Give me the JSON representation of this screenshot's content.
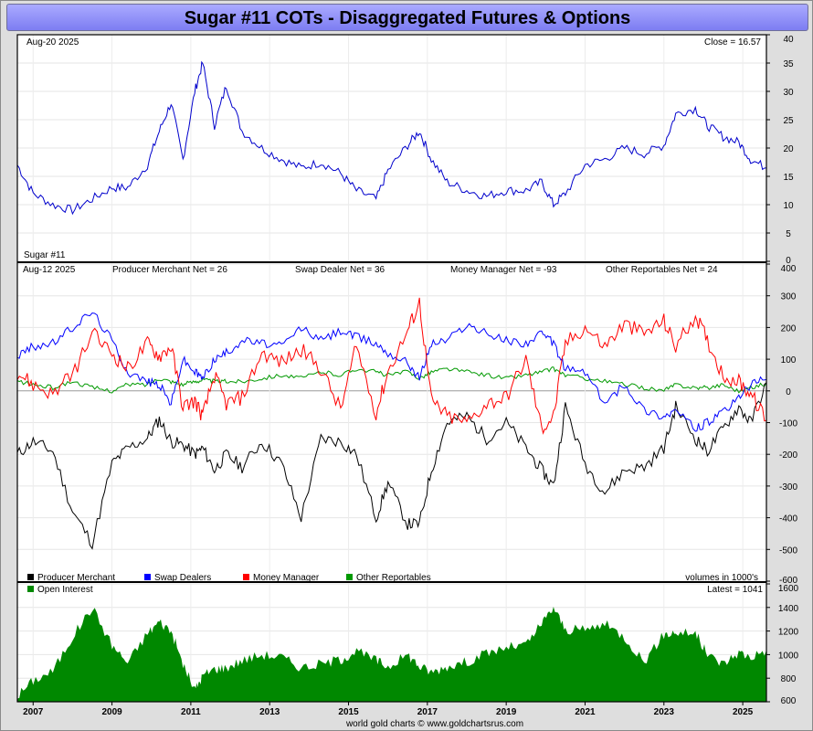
{
  "title": "Sugar #11 COTs - Disaggregated Futures & Options",
  "footer": "world gold charts © www.goldchartsrus.com",
  "x_axis": {
    "years": [
      "2007",
      "2009",
      "2011",
      "2013",
      "2015",
      "2017",
      "2019",
      "2021",
      "2023",
      "2025"
    ]
  },
  "price_panel": {
    "date_label": "Aug-20  2025",
    "close_label": "Close = 16.57",
    "series_label": "Sugar #11",
    "y_ticks": [
      "40",
      "35",
      "30",
      "25",
      "20",
      "15",
      "10",
      "5",
      "0"
    ],
    "color": "#0000cc"
  },
  "cot_panel": {
    "date_label": "Aug-12  2025",
    "net_labels": {
      "producer": "Producer Merchant Net = 26",
      "swap": "Swap Dealer Net = 36",
      "money": "Money Manager Net = -93",
      "other": "Other Reportables Net = 24"
    },
    "y_ticks": [
      "400",
      "300",
      "200",
      "100",
      "0",
      "-100",
      "-200",
      "-300",
      "-400",
      "-500",
      "-600"
    ],
    "legend": [
      {
        "name": "Producer Merchant",
        "color": "#000000"
      },
      {
        "name": "Swap Dealers",
        "color": "#0000ff"
      },
      {
        "name": "Money Manager",
        "color": "#ff0000"
      },
      {
        "name": "Other Reportables",
        "color": "#009900"
      }
    ],
    "units_note": "volumes in 1000's"
  },
  "oi_panel": {
    "legend_label": "Open Interest",
    "latest_label": "Latest = 1041",
    "y_ticks": [
      "1600",
      "1400",
      "1200",
      "1000",
      "800",
      "600"
    ],
    "color": "#008800"
  },
  "chart_data": [
    {
      "type": "line",
      "ylim": [
        0,
        40
      ],
      "x": [
        2006.6,
        2007.0,
        2007.5,
        2008.0,
        2008.5,
        2009.0,
        2009.4,
        2009.9,
        2010.2,
        2010.5,
        2010.8,
        2011.1,
        2011.3,
        2011.6,
        2011.9,
        2012.3,
        2012.8,
        2013.3,
        2013.8,
        2014.3,
        2014.8,
        2015.2,
        2015.7,
        2016.0,
        2016.5,
        2016.8,
        2017.1,
        2017.5,
        2018.0,
        2018.5,
        2019.0,
        2019.5,
        2019.9,
        2020.2,
        2020.5,
        2021.0,
        2021.5,
        2022.0,
        2022.5,
        2023.0,
        2023.3,
        2023.8,
        2024.1,
        2024.5,
        2024.9,
        2025.2,
        2025.6
      ],
      "series": [
        {
          "name": "Sugar #11",
          "values": [
            17,
            12,
            10,
            9,
            11,
            13,
            13,
            17,
            23,
            28,
            18,
            30,
            35,
            24,
            31,
            23,
            20,
            18,
            16.5,
            17.5,
            15.5,
            12.5,
            11,
            16,
            20.5,
            23,
            18,
            14,
            12.5,
            11.5,
            12.5,
            12.5,
            14,
            10,
            12,
            17,
            18,
            20,
            19,
            20.5,
            26,
            27,
            24,
            22,
            21,
            18,
            16.5
          ]
        }
      ]
    },
    {
      "type": "line",
      "ylim": [
        -600,
        400
      ],
      "x": [
        2006.6,
        2007.0,
        2007.5,
        2008.0,
        2008.5,
        2009.0,
        2009.4,
        2009.9,
        2010.2,
        2010.5,
        2010.8,
        2011.1,
        2011.3,
        2011.6,
        2011.9,
        2012.3,
        2012.8,
        2013.3,
        2013.8,
        2014.3,
        2014.8,
        2015.2,
        2015.7,
        2016.0,
        2016.5,
        2016.8,
        2017.1,
        2017.5,
        2018.0,
        2018.5,
        2019.0,
        2019.5,
        2019.9,
        2020.2,
        2020.5,
        2021.0,
        2021.5,
        2022.0,
        2022.5,
        2023.0,
        2023.3,
        2023.8,
        2024.1,
        2024.5,
        2024.9,
        2025.2,
        2025.6
      ],
      "series": [
        {
          "name": "Producer Merchant",
          "values": [
            -200,
            -160,
            -190,
            -380,
            -480,
            -230,
            -180,
            -150,
            -90,
            -160,
            -170,
            -200,
            -180,
            -250,
            -200,
            -240,
            -160,
            -230,
            -400,
            -150,
            -160,
            -200,
            -400,
            -290,
            -420,
            -420,
            -250,
            -100,
            -80,
            -150,
            -100,
            -180,
            -250,
            -300,
            -50,
            -230,
            -320,
            -250,
            -240,
            -180,
            -50,
            -150,
            -190,
            -120,
            -50,
            -100,
            26
          ]
        },
        {
          "name": "Swap Dealers",
          "values": [
            110,
            140,
            150,
            200,
            250,
            160,
            60,
            30,
            20,
            -40,
            100,
            60,
            40,
            100,
            120,
            160,
            150,
            140,
            200,
            160,
            190,
            170,
            150,
            120,
            90,
            40,
            150,
            160,
            210,
            180,
            160,
            150,
            180,
            150,
            70,
            60,
            -40,
            20,
            -60,
            -80,
            -60,
            -120,
            -100,
            -70,
            -20,
            20,
            36
          ]
        },
        {
          "name": "Money Manager",
          "values": [
            60,
            20,
            -10,
            50,
            180,
            120,
            70,
            150,
            110,
            140,
            -50,
            -30,
            -80,
            50,
            -40,
            -20,
            120,
            90,
            130,
            70,
            -60,
            140,
            -70,
            60,
            190,
            280,
            -30,
            -80,
            -100,
            -40,
            -20,
            100,
            -120,
            -80,
            150,
            200,
            140,
            210,
            180,
            220,
            140,
            240,
            160,
            50,
            30,
            -10,
            -93
          ]
        },
        {
          "name": "Other Reportables",
          "values": [
            30,
            20,
            10,
            30,
            10,
            0,
            20,
            20,
            40,
            30,
            20,
            30,
            35,
            30,
            30,
            30,
            40,
            50,
            40,
            60,
            50,
            70,
            60,
            50,
            60,
            40,
            60,
            70,
            60,
            50,
            40,
            50,
            60,
            70,
            50,
            40,
            30,
            20,
            10,
            0,
            20,
            10,
            10,
            20,
            0,
            10,
            24
          ]
        }
      ]
    },
    {
      "type": "area",
      "ylim": [
        600,
        1600
      ],
      "x": [
        2006.6,
        2007.0,
        2007.5,
        2008.0,
        2008.5,
        2009.0,
        2009.4,
        2009.9,
        2010.2,
        2010.5,
        2010.8,
        2011.1,
        2011.3,
        2011.6,
        2011.9,
        2012.3,
        2012.8,
        2013.3,
        2013.8,
        2014.3,
        2014.8,
        2015.2,
        2015.7,
        2016.0,
        2016.5,
        2016.8,
        2017.1,
        2017.5,
        2018.0,
        2018.5,
        2019.0,
        2019.5,
        2019.9,
        2020.2,
        2020.5,
        2021.0,
        2021.5,
        2022.0,
        2022.5,
        2023.0,
        2023.3,
        2023.8,
        2024.1,
        2024.5,
        2024.9,
        2025.2,
        2025.6
      ],
      "series": [
        {
          "name": "Open Interest",
          "values": [
            650,
            780,
            860,
            1150,
            1400,
            1080,
            930,
            1180,
            1280,
            1200,
            920,
            700,
            820,
            880,
            890,
            950,
            1000,
            980,
            890,
            920,
            960,
            1030,
            950,
            900,
            1000,
            900,
            850,
            900,
            940,
            1010,
            1060,
            1080,
            1260,
            1400,
            1210,
            1210,
            1260,
            1150,
            940,
            1170,
            1190,
            1180,
            1000,
            920,
            1020,
            980,
            1041
          ]
        }
      ]
    }
  ]
}
